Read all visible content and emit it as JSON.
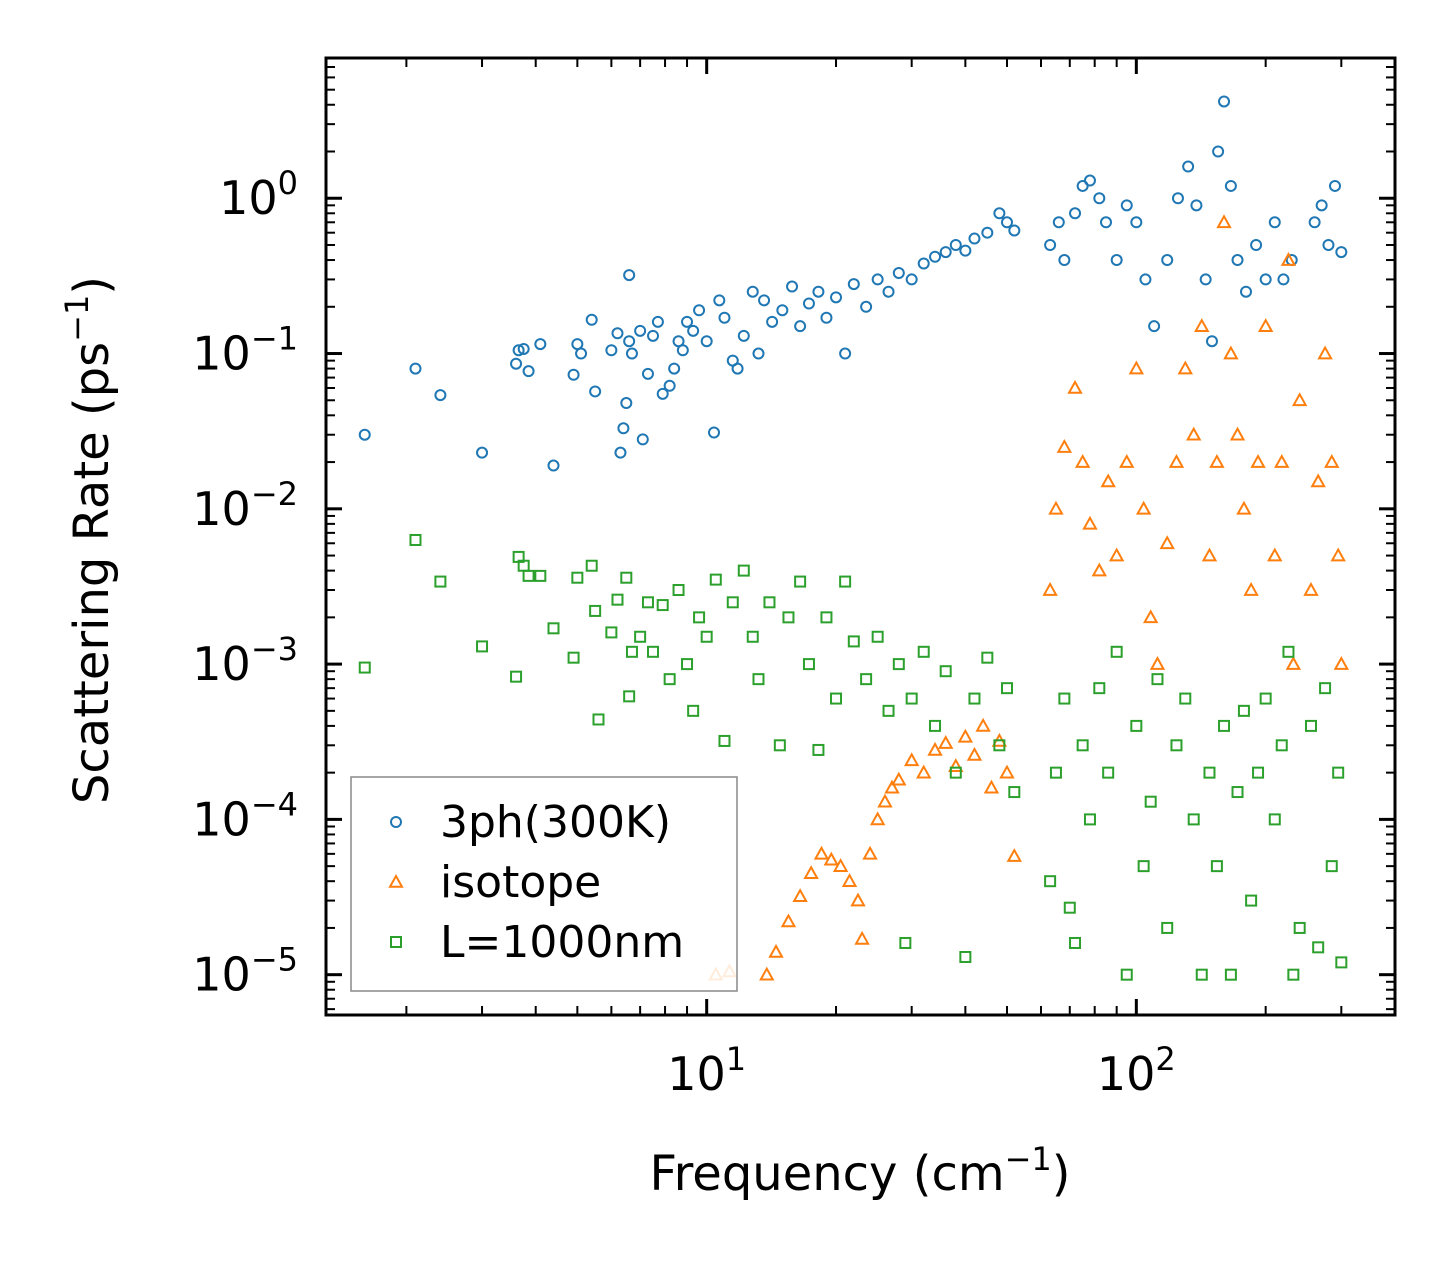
{
  "chart_data": {
    "type": "scatter",
    "title": "",
    "xlabel": "Frequency (cm",
    "xlabel_sup": "−1",
    "xlabel_close": ")",
    "ylabel": "Scattering Rate (ps",
    "ylabel_sup": "−1",
    "ylabel_close": ")",
    "xscale": "log",
    "yscale": "log",
    "xlim": [
      1.3,
      400
    ],
    "ylim": [
      5.5e-06,
      8.0
    ],
    "x_ticks": [
      {
        "value": 10,
        "base": "10",
        "exp": "1"
      },
      {
        "value": 100,
        "base": "10",
        "exp": "2"
      }
    ],
    "y_ticks": [
      {
        "value": 1,
        "base": "10",
        "exp": "0"
      },
      {
        "value": 0.1,
        "base": "10",
        "exp": "−1"
      },
      {
        "value": 0.01,
        "base": "10",
        "exp": "−2"
      },
      {
        "value": 0.001,
        "base": "10",
        "exp": "−3"
      },
      {
        "value": 0.0001,
        "base": "10",
        "exp": "−4"
      },
      {
        "value": 1e-05,
        "base": "10",
        "exp": "−5"
      }
    ],
    "legend_position": "lower-left",
    "series": [
      {
        "name": "3ph(300K)",
        "marker": "circle",
        "color": "#1f77b4",
        "points": [
          [
            1.6,
            0.03
          ],
          [
            2.1,
            0.08
          ],
          [
            2.4,
            0.054
          ],
          [
            3.0,
            0.023
          ],
          [
            3.6,
            0.086
          ],
          [
            3.65,
            0.105
          ],
          [
            3.75,
            0.107
          ],
          [
            3.85,
            0.077
          ],
          [
            4.1,
            0.115
          ],
          [
            4.4,
            0.019
          ],
          [
            4.9,
            0.073
          ],
          [
            5.0,
            0.115
          ],
          [
            5.1,
            0.1
          ],
          [
            5.4,
            0.165
          ],
          [
            5.5,
            0.057
          ],
          [
            6.0,
            0.105
          ],
          [
            6.2,
            0.135
          ],
          [
            6.3,
            0.023
          ],
          [
            6.4,
            0.033
          ],
          [
            6.5,
            0.048
          ],
          [
            6.6,
            0.32
          ],
          [
            6.6,
            0.12
          ],
          [
            6.7,
            0.1
          ],
          [
            7.0,
            0.14
          ],
          [
            7.1,
            0.028
          ],
          [
            7.3,
            0.074
          ],
          [
            7.5,
            0.13
          ],
          [
            7.7,
            0.16
          ],
          [
            7.9,
            0.055
          ],
          [
            8.2,
            0.062
          ],
          [
            8.4,
            0.08
          ],
          [
            8.6,
            0.12
          ],
          [
            8.8,
            0.105
          ],
          [
            9.0,
            0.16
          ],
          [
            9.3,
            0.14
          ],
          [
            9.6,
            0.19
          ],
          [
            10.0,
            0.12
          ],
          [
            10.4,
            0.031
          ],
          [
            10.7,
            0.22
          ],
          [
            11.0,
            0.17
          ],
          [
            11.5,
            0.09
          ],
          [
            11.8,
            0.08
          ],
          [
            12.2,
            0.13
          ],
          [
            12.8,
            0.25
          ],
          [
            13.2,
            0.1
          ],
          [
            13.6,
            0.22
          ],
          [
            14.2,
            0.16
          ],
          [
            15.0,
            0.19
          ],
          [
            15.8,
            0.27
          ],
          [
            16.5,
            0.15
          ],
          [
            17.3,
            0.21
          ],
          [
            18.2,
            0.25
          ],
          [
            19.0,
            0.17
          ],
          [
            20.0,
            0.23
          ],
          [
            21.0,
            0.1
          ],
          [
            22.0,
            0.28
          ],
          [
            23.5,
            0.2
          ],
          [
            25.0,
            0.3
          ],
          [
            26.5,
            0.25
          ],
          [
            28.0,
            0.33
          ],
          [
            30.0,
            0.3
          ],
          [
            32.0,
            0.38
          ],
          [
            34.0,
            0.42
          ],
          [
            36.0,
            0.45
          ],
          [
            38.0,
            0.5
          ],
          [
            40.0,
            0.46
          ],
          [
            42.0,
            0.55
          ],
          [
            45.0,
            0.6
          ],
          [
            48.0,
            0.8
          ],
          [
            50.0,
            0.7
          ],
          [
            52.0,
            0.62
          ],
          [
            63.0,
            0.5
          ],
          [
            66.0,
            0.7
          ],
          [
            68.0,
            0.4
          ],
          [
            72.0,
            0.8
          ],
          [
            75.0,
            1.2
          ],
          [
            78.0,
            1.3
          ],
          [
            82.0,
            1.0
          ],
          [
            85.0,
            0.7
          ],
          [
            90.0,
            0.4
          ],
          [
            95.0,
            0.9
          ],
          [
            100.0,
            0.7
          ],
          [
            105.0,
            0.3
          ],
          [
            110.0,
            0.15
          ],
          [
            118.0,
            0.4
          ],
          [
            125.0,
            1.0
          ],
          [
            132.0,
            1.6
          ],
          [
            138.0,
            0.9
          ],
          [
            145.0,
            0.3
          ],
          [
            150.0,
            0.12
          ],
          [
            155.0,
            2.0
          ],
          [
            160.0,
            4.2
          ],
          [
            166.0,
            1.2
          ],
          [
            172.0,
            0.4
          ],
          [
            180.0,
            0.25
          ],
          [
            190.0,
            0.5
          ],
          [
            200.0,
            0.3
          ],
          [
            210.0,
            0.7
          ],
          [
            220.0,
            0.3
          ],
          [
            230.0,
            0.4
          ],
          [
            260.0,
            0.7
          ],
          [
            270.0,
            0.9
          ],
          [
            280.0,
            0.5
          ],
          [
            290.0,
            1.2
          ],
          [
            300.0,
            0.45
          ]
        ]
      },
      {
        "name": "isotope",
        "marker": "triangle",
        "color": "#ff7f0e",
        "points": [
          [
            10.5,
            1e-05
          ],
          [
            11.3,
            1.05e-05
          ],
          [
            13.8,
            1e-05
          ],
          [
            14.5,
            1.4e-05
          ],
          [
            15.5,
            2.2e-05
          ],
          [
            16.5,
            3.2e-05
          ],
          [
            17.5,
            4.5e-05
          ],
          [
            18.5,
            6e-05
          ],
          [
            19.5,
            5.5e-05
          ],
          [
            20.5,
            5e-05
          ],
          [
            21.5,
            4e-05
          ],
          [
            22.5,
            3e-05
          ],
          [
            23.0,
            1.7e-05
          ],
          [
            24.0,
            6e-05
          ],
          [
            25.0,
            0.0001
          ],
          [
            26.0,
            0.00013
          ],
          [
            27.0,
            0.00016
          ],
          [
            28.0,
            0.00018
          ],
          [
            30.0,
            0.00024
          ],
          [
            32.0,
            0.0002
          ],
          [
            34.0,
            0.00028
          ],
          [
            36.0,
            0.00031
          ],
          [
            38.0,
            0.00022
          ],
          [
            40.0,
            0.00034
          ],
          [
            42.0,
            0.00026
          ],
          [
            44.0,
            0.0004
          ],
          [
            46.0,
            0.00016
          ],
          [
            48.0,
            0.00032
          ],
          [
            50.0,
            0.0002
          ],
          [
            52.0,
            5.8e-05
          ],
          [
            63.0,
            0.003
          ],
          [
            65.0,
            0.01
          ],
          [
            68.0,
            0.025
          ],
          [
            72.0,
            0.06
          ],
          [
            75.0,
            0.02
          ],
          [
            78.0,
            0.008
          ],
          [
            82.0,
            0.004
          ],
          [
            86.0,
            0.015
          ],
          [
            90.0,
            0.005
          ],
          [
            95.0,
            0.02
          ],
          [
            100.0,
            0.08
          ],
          [
            104.0,
            0.01
          ],
          [
            108.0,
            0.002
          ],
          [
            112.0,
            0.001
          ],
          [
            118.0,
            0.006
          ],
          [
            124.0,
            0.02
          ],
          [
            130.0,
            0.08
          ],
          [
            136.0,
            0.03
          ],
          [
            142.0,
            0.15
          ],
          [
            148.0,
            0.005
          ],
          [
            154.0,
            0.02
          ],
          [
            160.0,
            0.7
          ],
          [
            166.0,
            0.1
          ],
          [
            172.0,
            0.03
          ],
          [
            178.0,
            0.01
          ],
          [
            185.0,
            0.003
          ],
          [
            192.0,
            0.02
          ],
          [
            200.0,
            0.15
          ],
          [
            210.0,
            0.005
          ],
          [
            218.0,
            0.02
          ],
          [
            226.0,
            0.4
          ],
          [
            232.0,
            0.001
          ],
          [
            240.0,
            0.05
          ],
          [
            255.0,
            0.003
          ],
          [
            265.0,
            0.015
          ],
          [
            275.0,
            0.1
          ],
          [
            285.0,
            0.02
          ],
          [
            295.0,
            0.005
          ],
          [
            300.0,
            0.001
          ]
        ]
      },
      {
        "name": "L=1000nm",
        "marker": "square",
        "color": "#2ca02c",
        "points": [
          [
            1.6,
            0.00095
          ],
          [
            2.1,
            0.0063
          ],
          [
            2.4,
            0.0034
          ],
          [
            3.0,
            0.0013
          ],
          [
            3.6,
            0.00083
          ],
          [
            3.65,
            0.0049
          ],
          [
            3.75,
            0.0043
          ],
          [
            3.85,
            0.0037
          ],
          [
            4.1,
            0.0037
          ],
          [
            4.4,
            0.0017
          ],
          [
            4.9,
            0.0011
          ],
          [
            5.0,
            0.0036
          ],
          [
            5.4,
            0.0043
          ],
          [
            5.5,
            0.0022
          ],
          [
            5.6,
            0.00044
          ],
          [
            6.0,
            0.0016
          ],
          [
            6.2,
            0.0026
          ],
          [
            6.5,
            0.0036
          ],
          [
            6.6,
            0.00062
          ],
          [
            6.7,
            0.0012
          ],
          [
            7.0,
            0.0015
          ],
          [
            7.3,
            0.0025
          ],
          [
            7.5,
            0.0012
          ],
          [
            7.9,
            0.0024
          ],
          [
            8.2,
            0.0008
          ],
          [
            8.6,
            0.003
          ],
          [
            9.0,
            0.001
          ],
          [
            9.3,
            0.0005
          ],
          [
            9.6,
            0.002
          ],
          [
            10.0,
            0.0015
          ],
          [
            10.5,
            0.0035
          ],
          [
            11.0,
            0.00032
          ],
          [
            11.5,
            0.0025
          ],
          [
            12.2,
            0.004
          ],
          [
            12.8,
            0.0015
          ],
          [
            13.2,
            0.0008
          ],
          [
            14.0,
            0.0025
          ],
          [
            14.8,
            0.0003
          ],
          [
            15.5,
            0.002
          ],
          [
            16.5,
            0.0034
          ],
          [
            17.3,
            0.001
          ],
          [
            18.2,
            0.00028
          ],
          [
            19.0,
            0.002
          ],
          [
            20.0,
            0.0006
          ],
          [
            21.0,
            0.0034
          ],
          [
            22.0,
            0.0014
          ],
          [
            23.5,
            0.0008
          ],
          [
            25.0,
            0.0015
          ],
          [
            26.5,
            0.0005
          ],
          [
            28.0,
            0.001
          ],
          [
            29.0,
            1.6e-05
          ],
          [
            30.0,
            0.0006
          ],
          [
            32.0,
            0.0012
          ],
          [
            34.0,
            0.0004
          ],
          [
            36.0,
            0.0009
          ],
          [
            38.0,
            0.0002
          ],
          [
            40.0,
            1.3e-05
          ],
          [
            42.0,
            0.0006
          ],
          [
            45.0,
            0.0011
          ],
          [
            48.0,
            0.0003
          ],
          [
            50.0,
            0.0007
          ],
          [
            52.0,
            0.00015
          ],
          [
            63.0,
            4e-05
          ],
          [
            65.0,
            0.0002
          ],
          [
            68.0,
            0.0006
          ],
          [
            70.0,
            2.7e-05
          ],
          [
            72.0,
            1.6e-05
          ],
          [
            75.0,
            0.0003
          ],
          [
            78.0,
            0.0001
          ],
          [
            82.0,
            0.0007
          ],
          [
            86.0,
            0.0002
          ],
          [
            90.0,
            0.0012
          ],
          [
            95.0,
            1e-05
          ],
          [
            100.0,
            0.0004
          ],
          [
            104.0,
            5e-05
          ],
          [
            108.0,
            0.00013
          ],
          [
            112.0,
            0.0008
          ],
          [
            118.0,
            2e-05
          ],
          [
            124.0,
            0.0003
          ],
          [
            130.0,
            0.0006
          ],
          [
            136.0,
            0.0001
          ],
          [
            142.0,
            1e-05
          ],
          [
            148.0,
            0.0002
          ],
          [
            154.0,
            5e-05
          ],
          [
            160.0,
            0.0004
          ],
          [
            166.0,
            1e-05
          ],
          [
            172.0,
            0.00015
          ],
          [
            178.0,
            0.0005
          ],
          [
            185.0,
            3e-05
          ],
          [
            192.0,
            0.0002
          ],
          [
            200.0,
            0.0006
          ],
          [
            210.0,
            0.0001
          ],
          [
            218.0,
            0.0003
          ],
          [
            226.0,
            0.0012
          ],
          [
            232.0,
            1e-05
          ],
          [
            240.0,
            2e-05
          ],
          [
            255.0,
            0.0004
          ],
          [
            265.0,
            1.5e-05
          ],
          [
            275.0,
            0.0007
          ],
          [
            285.0,
            5e-05
          ],
          [
            295.0,
            0.0002
          ],
          [
            300.0,
            1.2e-05
          ]
        ]
      }
    ]
  }
}
